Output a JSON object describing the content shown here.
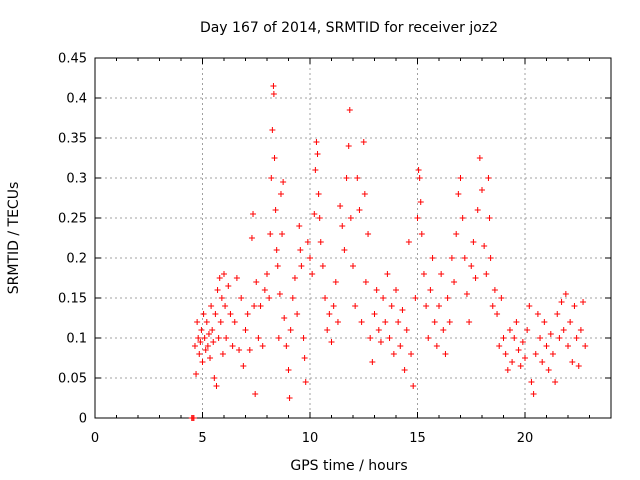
{
  "chart_data": {
    "type": "scatter",
    "title": "Day 167 of 2014, SRMTID for receiver joz2",
    "xlabel": "GPS time / hours",
    "ylabel": "SRMTID / TECUs",
    "xlim": [
      0,
      24
    ],
    "ylim": [
      0,
      0.45
    ],
    "x_ticks": [
      0,
      5,
      10,
      15,
      20
    ],
    "x_tick_labels": [
      "0",
      "5",
      "10",
      "15",
      "20"
    ],
    "y_ticks": [
      0,
      0.05,
      0.1,
      0.15,
      0.2,
      0.25,
      0.3,
      0.35,
      0.4,
      0.45
    ],
    "y_tick_labels": [
      "0",
      "0.05",
      "0.1",
      "0.15",
      "0.2",
      "0.25",
      "0.3",
      "0.35",
      "0.4",
      "0.45"
    ],
    "grid": true,
    "marker": "+",
    "series": [
      {
        "name": "SRMTID",
        "color": "#ff0000",
        "points": [
          [
            4.5,
            0.0
          ],
          [
            4.55,
            0.0
          ],
          [
            4.6,
            0.0
          ],
          [
            4.65,
            0.09
          ],
          [
            4.7,
            0.055
          ],
          [
            4.75,
            0.12
          ],
          [
            4.8,
            0.1
          ],
          [
            4.85,
            0.08
          ],
          [
            4.9,
            0.095
          ],
          [
            4.95,
            0.11
          ],
          [
            5.0,
            0.07
          ],
          [
            5.05,
            0.13
          ],
          [
            5.1,
            0.1
          ],
          [
            5.15,
            0.085
          ],
          [
            5.2,
            0.12
          ],
          [
            5.25,
            0.09
          ],
          [
            5.3,
            0.105
          ],
          [
            5.35,
            0.075
          ],
          [
            5.4,
            0.14
          ],
          [
            5.45,
            0.11
          ],
          [
            5.5,
            0.095
          ],
          [
            5.55,
            0.05
          ],
          [
            5.6,
            0.13
          ],
          [
            5.65,
            0.04
          ],
          [
            5.7,
            0.16
          ],
          [
            5.75,
            0.1
          ],
          [
            5.8,
            0.175
          ],
          [
            5.85,
            0.12
          ],
          [
            5.9,
            0.15
          ],
          [
            5.95,
            0.08
          ],
          [
            6.0,
            0.18
          ],
          [
            6.05,
            0.14
          ],
          [
            6.1,
            0.1
          ],
          [
            6.2,
            0.165
          ],
          [
            6.3,
            0.13
          ],
          [
            6.4,
            0.09
          ],
          [
            6.5,
            0.12
          ],
          [
            6.6,
            0.175
          ],
          [
            6.7,
            0.085
          ],
          [
            6.8,
            0.15
          ],
          [
            6.9,
            0.065
          ],
          [
            7.0,
            0.11
          ],
          [
            7.1,
            0.13
          ],
          [
            7.2,
            0.085
          ],
          [
            7.3,
            0.225
          ],
          [
            7.35,
            0.255
          ],
          [
            7.4,
            0.14
          ],
          [
            7.45,
            0.03
          ],
          [
            7.5,
            0.17
          ],
          [
            7.6,
            0.1
          ],
          [
            7.7,
            0.14
          ],
          [
            7.8,
            0.09
          ],
          [
            7.9,
            0.16
          ],
          [
            8.0,
            0.18
          ],
          [
            8.1,
            0.15
          ],
          [
            8.15,
            0.23
          ],
          [
            8.2,
            0.3
          ],
          [
            8.25,
            0.36
          ],
          [
            8.3,
            0.415
          ],
          [
            8.32,
            0.405
          ],
          [
            8.35,
            0.325
          ],
          [
            8.4,
            0.26
          ],
          [
            8.45,
            0.21
          ],
          [
            8.5,
            0.19
          ],
          [
            8.55,
            0.1
          ],
          [
            8.6,
            0.155
          ],
          [
            8.65,
            0.28
          ],
          [
            8.7,
            0.23
          ],
          [
            8.75,
            0.295
          ],
          [
            8.8,
            0.125
          ],
          [
            8.9,
            0.09
          ],
          [
            9.0,
            0.06
          ],
          [
            9.05,
            0.025
          ],
          [
            9.1,
            0.11
          ],
          [
            9.2,
            0.15
          ],
          [
            9.3,
            0.175
          ],
          [
            9.4,
            0.13
          ],
          [
            9.5,
            0.24
          ],
          [
            9.55,
            0.21
          ],
          [
            9.6,
            0.19
          ],
          [
            9.7,
            0.1
          ],
          [
            9.75,
            0.075
          ],
          [
            9.8,
            0.045
          ],
          [
            9.9,
            0.22
          ],
          [
            10.0,
            0.2
          ],
          [
            10.1,
            0.18
          ],
          [
            10.2,
            0.255
          ],
          [
            10.25,
            0.31
          ],
          [
            10.3,
            0.345
          ],
          [
            10.35,
            0.33
          ],
          [
            10.4,
            0.28
          ],
          [
            10.45,
            0.25
          ],
          [
            10.5,
            0.22
          ],
          [
            10.6,
            0.19
          ],
          [
            10.7,
            0.15
          ],
          [
            10.8,
            0.11
          ],
          [
            10.9,
            0.13
          ],
          [
            11.0,
            0.095
          ],
          [
            11.1,
            0.14
          ],
          [
            11.2,
            0.17
          ],
          [
            11.3,
            0.12
          ],
          [
            11.4,
            0.265
          ],
          [
            11.5,
            0.24
          ],
          [
            11.6,
            0.21
          ],
          [
            11.7,
            0.3
          ],
          [
            11.8,
            0.34
          ],
          [
            11.85,
            0.385
          ],
          [
            11.9,
            0.25
          ],
          [
            12.0,
            0.19
          ],
          [
            12.1,
            0.14
          ],
          [
            12.2,
            0.3
          ],
          [
            12.3,
            0.26
          ],
          [
            12.4,
            0.12
          ],
          [
            12.5,
            0.345
          ],
          [
            12.55,
            0.28
          ],
          [
            12.6,
            0.17
          ],
          [
            12.7,
            0.23
          ],
          [
            12.8,
            0.1
          ],
          [
            12.9,
            0.07
          ],
          [
            13.0,
            0.13
          ],
          [
            13.1,
            0.16
          ],
          [
            13.2,
            0.11
          ],
          [
            13.3,
            0.095
          ],
          [
            13.4,
            0.15
          ],
          [
            13.5,
            0.12
          ],
          [
            13.6,
            0.18
          ],
          [
            13.7,
            0.1
          ],
          [
            13.8,
            0.14
          ],
          [
            13.9,
            0.08
          ],
          [
            14.0,
            0.16
          ],
          [
            14.1,
            0.12
          ],
          [
            14.2,
            0.09
          ],
          [
            14.3,
            0.135
          ],
          [
            14.4,
            0.06
          ],
          [
            14.5,
            0.11
          ],
          [
            14.6,
            0.22
          ],
          [
            14.7,
            0.08
          ],
          [
            14.8,
            0.04
          ],
          [
            14.9,
            0.15
          ],
          [
            15.0,
            0.25
          ],
          [
            15.05,
            0.31
          ],
          [
            15.1,
            0.3
          ],
          [
            15.15,
            0.27
          ],
          [
            15.2,
            0.23
          ],
          [
            15.3,
            0.18
          ],
          [
            15.4,
            0.14
          ],
          [
            15.5,
            0.1
          ],
          [
            15.6,
            0.16
          ],
          [
            15.7,
            0.2
          ],
          [
            15.8,
            0.12
          ],
          [
            15.9,
            0.09
          ],
          [
            16.0,
            0.14
          ],
          [
            16.1,
            0.18
          ],
          [
            16.2,
            0.11
          ],
          [
            16.3,
            0.08
          ],
          [
            16.4,
            0.15
          ],
          [
            16.5,
            0.12
          ],
          [
            16.6,
            0.2
          ],
          [
            16.7,
            0.17
          ],
          [
            16.8,
            0.23
          ],
          [
            16.9,
            0.28
          ],
          [
            17.0,
            0.3
          ],
          [
            17.1,
            0.25
          ],
          [
            17.2,
            0.2
          ],
          [
            17.3,
            0.155
          ],
          [
            17.4,
            0.12
          ],
          [
            17.5,
            0.19
          ],
          [
            17.6,
            0.22
          ],
          [
            17.7,
            0.175
          ],
          [
            17.8,
            0.26
          ],
          [
            17.9,
            0.325
          ],
          [
            18.0,
            0.285
          ],
          [
            18.1,
            0.215
          ],
          [
            18.2,
            0.18
          ],
          [
            18.3,
            0.3
          ],
          [
            18.35,
            0.25
          ],
          [
            18.4,
            0.2
          ],
          [
            18.5,
            0.14
          ],
          [
            18.6,
            0.16
          ],
          [
            18.7,
            0.13
          ],
          [
            18.8,
            0.09
          ],
          [
            18.9,
            0.15
          ],
          [
            19.0,
            0.1
          ],
          [
            19.1,
            0.08
          ],
          [
            19.2,
            0.06
          ],
          [
            19.3,
            0.11
          ],
          [
            19.4,
            0.07
          ],
          [
            19.5,
            0.1
          ],
          [
            19.6,
            0.12
          ],
          [
            19.7,
            0.085
          ],
          [
            19.8,
            0.065
          ],
          [
            19.9,
            0.095
          ],
          [
            20.0,
            0.075
          ],
          [
            20.1,
            0.11
          ],
          [
            20.2,
            0.14
          ],
          [
            20.3,
            0.045
          ],
          [
            20.4,
            0.03
          ],
          [
            20.5,
            0.08
          ],
          [
            20.6,
            0.13
          ],
          [
            20.7,
            0.1
          ],
          [
            20.8,
            0.07
          ],
          [
            20.9,
            0.12
          ],
          [
            21.0,
            0.09
          ],
          [
            21.1,
            0.06
          ],
          [
            21.2,
            0.105
          ],
          [
            21.3,
            0.08
          ],
          [
            21.4,
            0.045
          ],
          [
            21.5,
            0.13
          ],
          [
            21.6,
            0.1
          ],
          [
            21.7,
            0.145
          ],
          [
            21.8,
            0.11
          ],
          [
            21.9,
            0.155
          ],
          [
            22.0,
            0.09
          ],
          [
            22.1,
            0.12
          ],
          [
            22.2,
            0.07
          ],
          [
            22.3,
            0.14
          ],
          [
            22.4,
            0.1
          ],
          [
            22.5,
            0.065
          ],
          [
            22.6,
            0.11
          ],
          [
            22.7,
            0.145
          ],
          [
            22.8,
            0.09
          ]
        ]
      }
    ]
  }
}
